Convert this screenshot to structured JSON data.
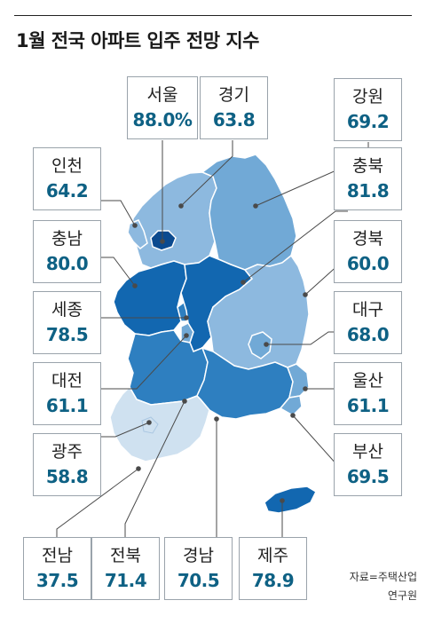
{
  "title": "1월 전국 아파트 입주 전망 지수",
  "source_line1": "자료=주택산업",
  "source_line2": "연구원",
  "colors": {
    "darkest": "#0b4a8f",
    "dark": "#1267b0",
    "mid": "#2e7fc0",
    "light": "#71a9d6",
    "lighter": "#8db9df",
    "pale": "#cfe1f0",
    "value_text": "#0e6184"
  },
  "regions": {
    "seoul": {
      "name": "서울",
      "value": "88.0%"
    },
    "gyeonggi": {
      "name": "경기",
      "value": "63.8"
    },
    "gangwon": {
      "name": "강원",
      "value": "69.2"
    },
    "incheon": {
      "name": "인천",
      "value": "64.2"
    },
    "chungbuk": {
      "name": "충북",
      "value": "81.8"
    },
    "chungnam": {
      "name": "충남",
      "value": "80.0"
    },
    "gyeongbuk": {
      "name": "경북",
      "value": "60.0"
    },
    "sejong": {
      "name": "세종",
      "value": "78.5"
    },
    "daegu": {
      "name": "대구",
      "value": "68.0"
    },
    "daejeon": {
      "name": "대전",
      "value": "61.1"
    },
    "ulsan": {
      "name": "울산",
      "value": "61.1"
    },
    "gwangju": {
      "name": "광주",
      "value": "58.8"
    },
    "busan": {
      "name": "부산",
      "value": "69.5"
    },
    "jeonnam": {
      "name": "전남",
      "value": "37.5"
    },
    "jeonbuk": {
      "name": "전북",
      "value": "71.4"
    },
    "gyeongnam": {
      "name": "경남",
      "value": "70.5"
    },
    "jeju": {
      "name": "제주",
      "value": "78.9"
    }
  }
}
